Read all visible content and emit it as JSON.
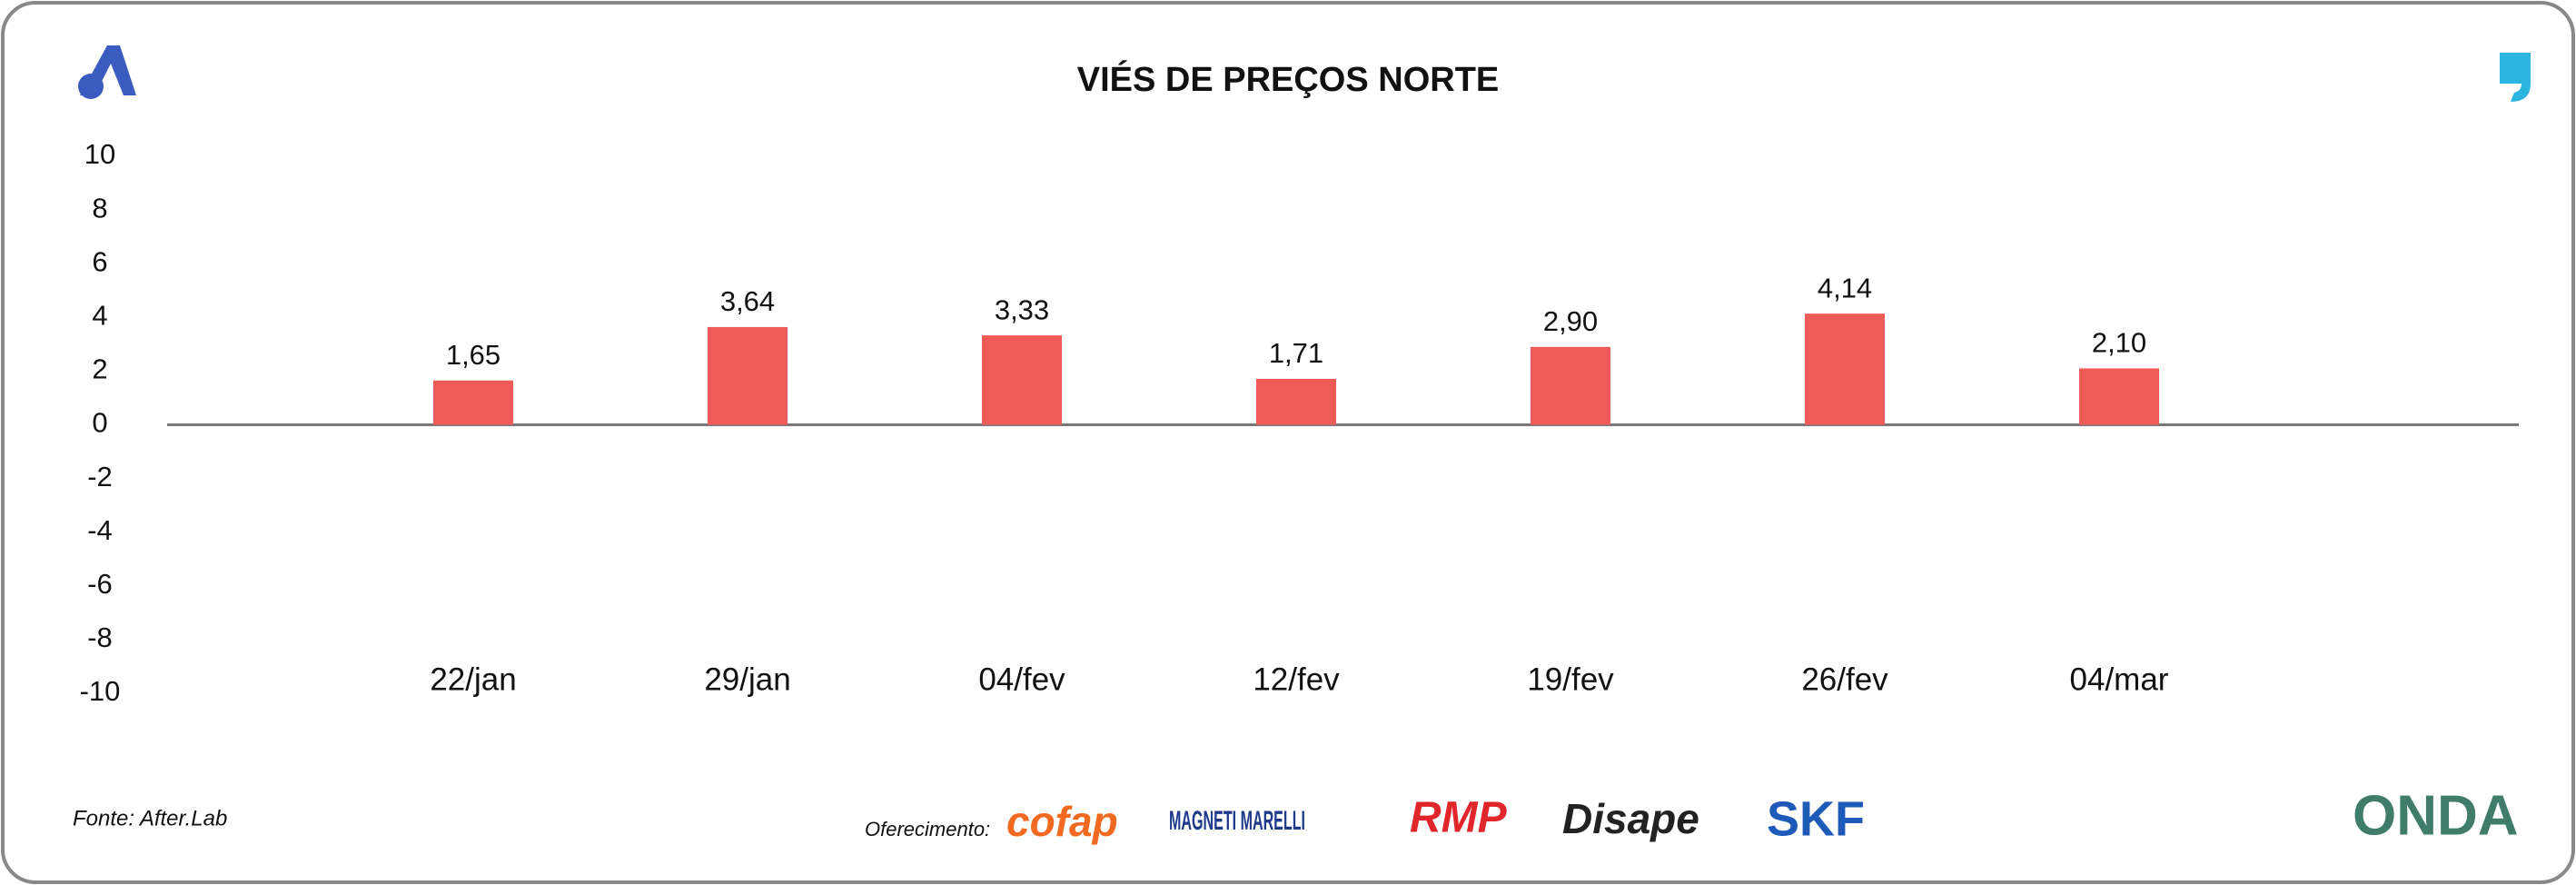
{
  "chart_data": {
    "type": "bar",
    "title": "VIÉS DE PREÇOS NORTE",
    "categories": [
      "22/jan",
      "29/jan",
      "04/fev",
      "12/fev",
      "19/fev",
      "26/fev",
      "04/mar"
    ],
    "values": [
      1.65,
      3.64,
      3.33,
      1.71,
      2.9,
      4.14,
      2.1
    ],
    "value_labels": [
      "1,65",
      "3,64",
      "3,33",
      "1,71",
      "2,90",
      "4,14",
      "2,10"
    ],
    "color": "#f05a57",
    "ylim": [
      -10,
      10
    ],
    "yticks": [
      -10,
      -8,
      -6,
      -4,
      -2,
      0,
      2,
      4,
      6,
      8,
      10
    ],
    "grid": false
  },
  "footer": {
    "source": "Fonte: After.Lab",
    "sponsor_label": "Oferecimento:",
    "sponsors": [
      "cofap",
      "MAGNETI MARELLI",
      "RMP",
      "Disape",
      "SKF"
    ],
    "brand": "ONDA"
  }
}
